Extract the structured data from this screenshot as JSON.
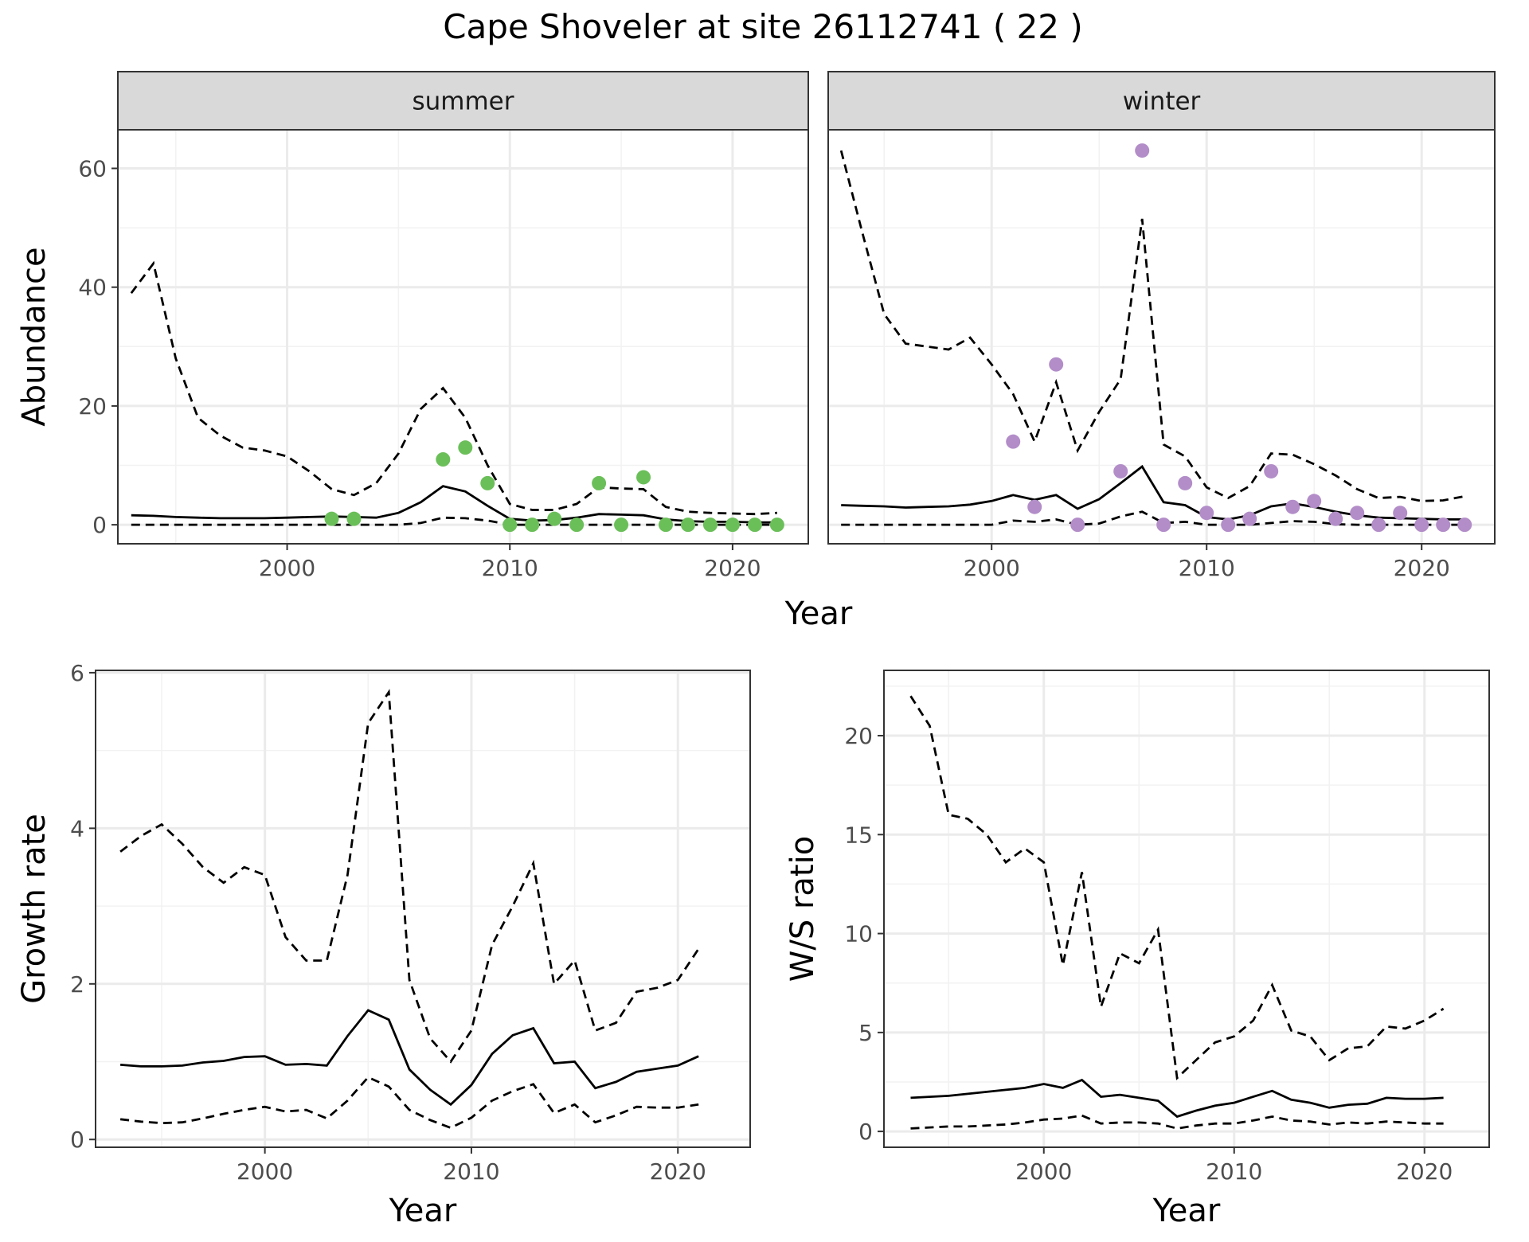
{
  "figure": {
    "title": "Cape Shoveler at site 26112741 ( 22 )",
    "top_x_title": "Year"
  },
  "chart_data": [
    {
      "type": "line",
      "panel": "summer",
      "strip_label": "summer",
      "xlabel": "",
      "ylabel": "Abundance",
      "xlim": [
        1992.4,
        2023.4
      ],
      "ylim": [
        -3.2,
        66.5
      ],
      "xticks": [
        2000,
        2010,
        2020
      ],
      "xtick_labels": [
        "2000",
        "2010",
        "2020"
      ],
      "xminor": [
        1995,
        2005,
        2015
      ],
      "yticks": [
        0,
        20,
        40,
        60
      ],
      "ytick_labels": [
        "0",
        "20",
        "40",
        "60"
      ],
      "yminor": [
        10,
        30,
        50
      ],
      "show_y_ticks": true,
      "grid": true,
      "point_color": "#6bbf59",
      "x": [
        1993,
        1994,
        1995,
        1996,
        1997,
        1998,
        1999,
        2000,
        2001,
        2002,
        2003,
        2004,
        2005,
        2006,
        2007,
        2008,
        2009,
        2010,
        2011,
        2012,
        2013,
        2014,
        2015,
        2016,
        2017,
        2018,
        2019,
        2020,
        2021,
        2022
      ],
      "mean": [
        1.6,
        1.5,
        1.3,
        1.2,
        1.1,
        1.1,
        1.1,
        1.2,
        1.3,
        1.4,
        1.3,
        1.2,
        2.0,
        3.8,
        6.5,
        5.6,
        3.2,
        1.0,
        0.7,
        0.8,
        1.2,
        1.8,
        1.7,
        1.6,
        0.9,
        0.6,
        0.5,
        0.5,
        0.4,
        0.4
      ],
      "upper": [
        39,
        44,
        28,
        18,
        15,
        13,
        12.5,
        11.5,
        9,
        6,
        5,
        7,
        12,
        19.5,
        23,
        18,
        10,
        3.5,
        2.5,
        2.5,
        3.5,
        6.3,
        6.1,
        6.0,
        3.0,
        2.2,
        2.0,
        1.9,
        1.8,
        2.0
      ],
      "lower": [
        0,
        0,
        0,
        0,
        0,
        0,
        0,
        0,
        0,
        0,
        0,
        0,
        0,
        0.3,
        1.2,
        1.1,
        0.7,
        0,
        0,
        0,
        0,
        0,
        0,
        0,
        0,
        0,
        0,
        0,
        0,
        0
      ],
      "observed_x": [
        2002,
        2003,
        2007,
        2008,
        2009,
        2010,
        2011,
        2012,
        2013,
        2014,
        2015,
        2016,
        2017,
        2018,
        2019,
        2020,
        2021,
        2022
      ],
      "observed_y": [
        1,
        1,
        11,
        13,
        7,
        0,
        0,
        1,
        0,
        7,
        0,
        8,
        0,
        0,
        0,
        0,
        0,
        0
      ]
    },
    {
      "type": "line",
      "panel": "winter",
      "strip_label": "winter",
      "xlabel": "",
      "ylabel": "",
      "xlim": [
        1992.4,
        2023.4
      ],
      "ylim": [
        -3.2,
        66.5
      ],
      "xticks": [
        2000,
        2010,
        2020
      ],
      "xtick_labels": [
        "2000",
        "2010",
        "2020"
      ],
      "xminor": [
        1995,
        2005,
        2015
      ],
      "yticks": [
        0,
        20,
        40,
        60
      ],
      "ytick_labels": [],
      "yminor": [
        10,
        30,
        50
      ],
      "show_y_ticks": false,
      "grid": true,
      "point_color": "#b28dc8",
      "x": [
        1993,
        1994,
        1995,
        1996,
        1997,
        1998,
        1999,
        2000,
        2001,
        2002,
        2003,
        2004,
        2005,
        2006,
        2007,
        2008,
        2009,
        2010,
        2011,
        2012,
        2013,
        2014,
        2015,
        2016,
        2017,
        2018,
        2019,
        2020,
        2021,
        2022
      ],
      "mean": [
        3.3,
        3.2,
        3.1,
        2.9,
        3.0,
        3.1,
        3.4,
        4.0,
        5.0,
        4.2,
        5.0,
        2.7,
        4.3,
        7.0,
        9.8,
        3.8,
        3.3,
        1.3,
        0.9,
        1.6,
        3.1,
        3.6,
        3.0,
        2.2,
        1.6,
        1.2,
        1.1,
        1.0,
        0.9,
        0.9
      ],
      "upper": [
        63,
        49,
        35.5,
        30.5,
        30,
        29.5,
        31.5,
        27,
        22,
        14,
        24,
        12.5,
        19,
        24.5,
        51.5,
        13.5,
        11.5,
        6.3,
        4.5,
        6.5,
        12,
        11.8,
        10.2,
        8.3,
        6.0,
        4.5,
        4.7,
        4.0,
        4.1,
        4.8
      ],
      "lower": [
        0,
        0,
        0,
        0,
        0,
        0,
        0,
        0,
        0.7,
        0.5,
        0.9,
        0,
        0.2,
        1.4,
        2.2,
        0.3,
        0.5,
        0,
        0,
        0,
        0.3,
        0.6,
        0.5,
        0.1,
        0,
        0,
        0,
        0,
        0,
        0
      ],
      "observed_x": [
        2001,
        2002,
        2003,
        2004,
        2006,
        2007,
        2008,
        2009,
        2010,
        2011,
        2012,
        2013,
        2014,
        2015,
        2016,
        2017,
        2018,
        2019,
        2020,
        2021,
        2022
      ],
      "observed_y": [
        14,
        3,
        27,
        0,
        9,
        63,
        0,
        7,
        2,
        0,
        1,
        9,
        3,
        4,
        1,
        2,
        0,
        2,
        0,
        0,
        0
      ]
    },
    {
      "type": "line",
      "panel": "growth",
      "xlabel": "Year",
      "ylabel": "Growth rate",
      "xlim": [
        1991.8,
        2023.5
      ],
      "ylim": [
        -0.1,
        6.03
      ],
      "xticks": [
        2000,
        2010,
        2020
      ],
      "xtick_labels": [
        "2000",
        "2010",
        "2020"
      ],
      "xminor": [
        1995,
        2005,
        2015
      ],
      "yticks": [
        0,
        2,
        4,
        6
      ],
      "ytick_labels": [
        "0",
        "2",
        "4",
        "6"
      ],
      "yminor": [
        1,
        3,
        5
      ],
      "show_y_ticks": true,
      "grid": true,
      "x": [
        1993,
        1994,
        1995,
        1996,
        1997,
        1998,
        1999,
        2000,
        2001,
        2002,
        2003,
        2004,
        2005,
        2006,
        2007,
        2008,
        2009,
        2010,
        2011,
        2012,
        2013,
        2014,
        2015,
        2016,
        2017,
        2018,
        2019,
        2020,
        2021
      ],
      "mean": [
        0.96,
        0.94,
        0.94,
        0.95,
        0.99,
        1.01,
        1.06,
        1.07,
        0.96,
        0.97,
        0.95,
        1.33,
        1.66,
        1.54,
        0.9,
        0.64,
        0.45,
        0.7,
        1.1,
        1.34,
        1.43,
        0.98,
        1.0,
        0.66,
        0.74,
        0.87,
        0.91,
        0.95,
        1.07
      ],
      "upper": [
        3.7,
        3.9,
        4.05,
        3.8,
        3.5,
        3.3,
        3.5,
        3.4,
        2.6,
        2.3,
        2.3,
        3.4,
        5.35,
        5.75,
        2.05,
        1.3,
        1.0,
        1.4,
        2.5,
        3.0,
        3.55,
        2.0,
        2.3,
        1.4,
        1.5,
        1.9,
        1.95,
        2.05,
        2.45
      ],
      "lower": [
        0.26,
        0.23,
        0.21,
        0.22,
        0.27,
        0.33,
        0.38,
        0.42,
        0.36,
        0.38,
        0.27,
        0.5,
        0.8,
        0.68,
        0.38,
        0.25,
        0.15,
        0.28,
        0.5,
        0.62,
        0.71,
        0.34,
        0.45,
        0.22,
        0.31,
        0.42,
        0.41,
        0.41,
        0.45
      ]
    },
    {
      "type": "line",
      "panel": "ratio",
      "xlabel": "Year",
      "ylabel": "W/S ratio",
      "xlim": [
        1991.6,
        2023.4
      ],
      "ylim": [
        -0.8,
        23.3
      ],
      "xticks": [
        2000,
        2010,
        2020
      ],
      "xtick_labels": [
        "2000",
        "2010",
        "2020"
      ],
      "xminor": [
        1995,
        2005,
        2015
      ],
      "yticks": [
        0,
        5,
        10,
        15,
        20
      ],
      "ytick_labels": [
        "0",
        "5",
        "10",
        "15",
        "20"
      ],
      "yminor": [
        2.5,
        7.5,
        12.5,
        17.5,
        22.5
      ],
      "show_y_ticks": true,
      "grid": true,
      "x": [
        1993,
        1994,
        1995,
        1996,
        1997,
        1998,
        1999,
        2000,
        2001,
        2002,
        2003,
        2004,
        2005,
        2006,
        2007,
        2008,
        2009,
        2010,
        2011,
        2012,
        2013,
        2014,
        2015,
        2016,
        2017,
        2018,
        2019,
        2020,
        2021
      ],
      "mean": [
        1.7,
        1.75,
        1.8,
        1.9,
        2.0,
        2.1,
        2.2,
        2.4,
        2.2,
        2.6,
        1.75,
        1.85,
        1.7,
        1.55,
        0.75,
        1.05,
        1.3,
        1.45,
        1.75,
        2.05,
        1.6,
        1.45,
        1.2,
        1.35,
        1.4,
        1.7,
        1.65,
        1.65,
        1.7
      ],
      "upper": [
        22,
        20.5,
        16,
        15.8,
        15.0,
        13.6,
        14.3,
        13.6,
        8.4,
        13.1,
        6.3,
        9.0,
        8.5,
        10.2,
        2.7,
        3.6,
        4.5,
        4.8,
        5.6,
        7.4,
        5.1,
        4.8,
        3.6,
        4.2,
        4.3,
        5.3,
        5.2,
        5.6,
        6.2
      ],
      "lower": [
        0.15,
        0.2,
        0.25,
        0.25,
        0.3,
        0.35,
        0.45,
        0.6,
        0.65,
        0.8,
        0.4,
        0.45,
        0.45,
        0.4,
        0.15,
        0.3,
        0.4,
        0.4,
        0.55,
        0.75,
        0.55,
        0.5,
        0.35,
        0.45,
        0.4,
        0.5,
        0.45,
        0.4,
        0.4
      ]
    }
  ]
}
